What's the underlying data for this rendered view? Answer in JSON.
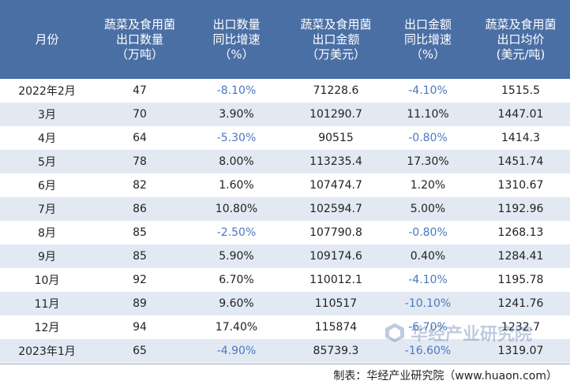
{
  "header": {
    "month": "月份",
    "col1": [
      "蔬菜及食用菌",
      "出口数量",
      "（万吨）"
    ],
    "col2": [
      "出口数量",
      "同比增速",
      "（%）"
    ],
    "col3": [
      "蔬菜及食用菌",
      "出口金额",
      "（万美元）"
    ],
    "col4": [
      "出口金额",
      "同比增速",
      "（%）"
    ],
    "col5": [
      "蔬菜及食用菌",
      "出口均价",
      "(美元/吨)"
    ]
  },
  "rows": [
    {
      "month": "2022年2月",
      "qty": "47",
      "qty_yoy": "-8.10%",
      "amount": "71228.6",
      "amount_yoy": "-4.10%",
      "price": "1515.5"
    },
    {
      "month": "3月",
      "qty": "70",
      "qty_yoy": "3.90%",
      "amount": "101290.7",
      "amount_yoy": "11.10%",
      "price": "1447.01"
    },
    {
      "month": "4月",
      "qty": "64",
      "qty_yoy": "-5.30%",
      "amount": "90515",
      "amount_yoy": "-0.80%",
      "price": "1414.3"
    },
    {
      "month": "5月",
      "qty": "78",
      "qty_yoy": "8.00%",
      "amount": "113235.4",
      "amount_yoy": "17.30%",
      "price": "1451.74"
    },
    {
      "month": "6月",
      "qty": "82",
      "qty_yoy": "1.60%",
      "amount": "107474.7",
      "amount_yoy": "1.20%",
      "price": "1310.67"
    },
    {
      "month": "7月",
      "qty": "86",
      "qty_yoy": "10.80%",
      "amount": "102594.7",
      "amount_yoy": "5.00%",
      "price": "1192.96"
    },
    {
      "month": "8月",
      "qty": "85",
      "qty_yoy": "-2.50%",
      "amount": "107790.8",
      "amount_yoy": "-0.80%",
      "price": "1268.13"
    },
    {
      "month": "9月",
      "qty": "85",
      "qty_yoy": "5.90%",
      "amount": "109174.6",
      "amount_yoy": "0.40%",
      "price": "1284.41"
    },
    {
      "month": "10月",
      "qty": "92",
      "qty_yoy": "6.70%",
      "amount": "110012.1",
      "amount_yoy": "-4.10%",
      "price": "1195.78"
    },
    {
      "month": "11月",
      "qty": "89",
      "qty_yoy": "9.60%",
      "amount": "110517",
      "amount_yoy": "-10.10%",
      "price": "1241.76"
    },
    {
      "month": "12月",
      "qty": "94",
      "qty_yoy": "17.40%",
      "amount": "115874",
      "amount_yoy": "-6.70%",
      "price": "1232.7"
    },
    {
      "month": "2023年1月",
      "qty": "65",
      "qty_yoy": "-4.90%",
      "amount": "85739.3",
      "amount_yoy": "-16.60%",
      "price": "1319.07"
    }
  ],
  "footer": {
    "source": "制表：华经产业研究院（www.huaon.com）"
  },
  "watermark": {
    "text": "华经产业研究院"
  },
  "colors": {
    "header_bg": "#4a6fa5",
    "alt_row": "#e2e9f3",
    "negative_text": "#4a78c2"
  }
}
